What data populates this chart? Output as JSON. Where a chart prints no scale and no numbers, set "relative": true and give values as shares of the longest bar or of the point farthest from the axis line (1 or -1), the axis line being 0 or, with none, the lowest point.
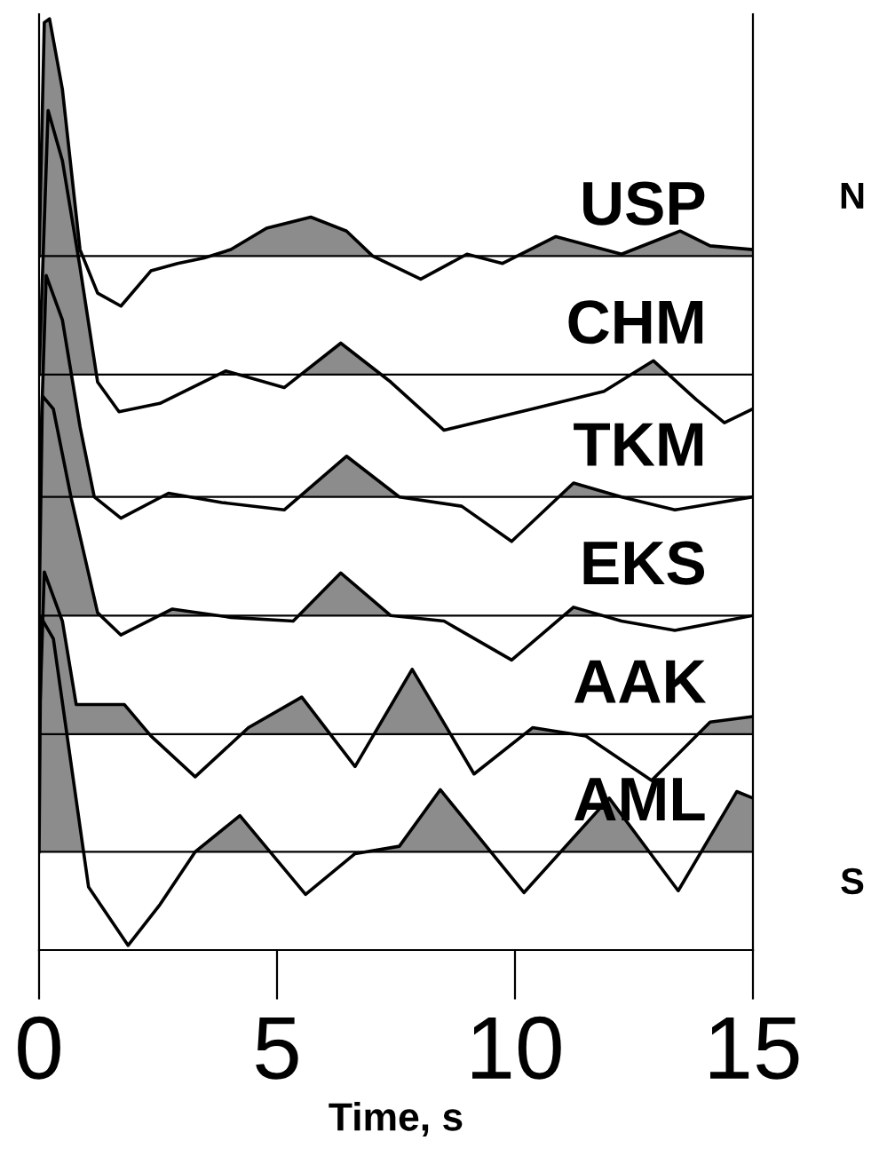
{
  "chart_data": {
    "type": "line",
    "relative": true,
    "xlabel": "Time, s",
    "xlim": [
      0,
      15
    ],
    "xticks": [
      0,
      5,
      10,
      15
    ],
    "grid": false,
    "annotations": [
      "N",
      "S"
    ],
    "ref_lines": [
      {
        "axis": "y",
        "value": 0.744
      },
      {
        "axis": "y",
        "value": 0.616
      },
      {
        "axis": "y",
        "value": 0.484
      },
      {
        "axis": "y",
        "value": 0.356
      },
      {
        "axis": "y",
        "value": 0.228
      },
      {
        "axis": "y",
        "value": 0.101
      }
    ],
    "series": [
      {
        "name": "USP",
        "color": "#000000",
        "x": [
          0,
          0.11,
          0.22,
          0.49,
          0.86,
          1.23,
          1.72,
          2.35,
          2.91,
          3.47,
          4.03,
          4.78,
          5.71,
          6.46,
          7.01,
          8.02,
          8.99,
          9.74,
          10.86,
          12.24,
          13.47,
          14.1,
          15
        ],
        "values": [
          0.744,
          0.996,
          1.0,
          0.924,
          0.751,
          0.704,
          0.69,
          0.728,
          0.736,
          0.742,
          0.751,
          0.774,
          0.786,
          0.771,
          0.744,
          0.719,
          0.746,
          0.736,
          0.765,
          0.746,
          0.771,
          0.755,
          0.751
        ]
      },
      {
        "name": "CHM",
        "color": "#000000",
        "x": [
          0,
          0.19,
          0.49,
          0.86,
          1.23,
          1.68,
          2.54,
          3.92,
          5.15,
          6.34,
          7.39,
          8.51,
          10.37,
          11.87,
          12.91,
          13.81,
          14.4,
          15
        ],
        "values": [
          0.616,
          0.901,
          0.847,
          0.732,
          0.608,
          0.576,
          0.585,
          0.62,
          0.602,
          0.65,
          0.608,
          0.556,
          0.579,
          0.598,
          0.631,
          0.589,
          0.564,
          0.579
        ]
      },
      {
        "name": "TKM",
        "color": "#000000",
        "x": [
          0,
          0.15,
          0.49,
          0.86,
          1.16,
          1.72,
          2.72,
          3.84,
          5.15,
          6.46,
          7.57,
          8.88,
          9.93,
          11.23,
          12.24,
          13.36,
          15
        ],
        "values": [
          0.484,
          0.723,
          0.675,
          0.56,
          0.484,
          0.461,
          0.488,
          0.478,
          0.47,
          0.528,
          0.484,
          0.474,
          0.436,
          0.499,
          0.484,
          0.47,
          0.484
        ]
      },
      {
        "name": "EKS",
        "color": "#000000",
        "x": [
          0,
          0.07,
          0.3,
          0.67,
          1.23,
          1.72,
          2.8,
          4.03,
          5.34,
          6.34,
          7.39,
          8.51,
          9.93,
          11.23,
          12.24,
          13.36,
          15
        ],
        "values": [
          0.356,
          0.593,
          0.579,
          0.484,
          0.359,
          0.335,
          0.363,
          0.354,
          0.35,
          0.402,
          0.356,
          0.35,
          0.308,
          0.365,
          0.35,
          0.34,
          0.356
        ]
      },
      {
        "name": "AAK",
        "color": "#000000",
        "x": [
          0,
          0.11,
          0.49,
          0.78,
          1.31,
          1.79,
          2.35,
          3.28,
          4.4,
          5.52,
          6.64,
          7.84,
          9.14,
          10.37,
          11.49,
          12.87,
          14.1,
          15
        ],
        "values": [
          0.228,
          0.403,
          0.35,
          0.26,
          0.26,
          0.26,
          0.226,
          0.182,
          0.235,
          0.268,
          0.193,
          0.298,
          0.185,
          0.235,
          0.226,
          0.178,
          0.241,
          0.247
        ]
      },
      {
        "name": "AML",
        "color": "#000000",
        "x": [
          0,
          0.04,
          0.3,
          0.67,
          1.04,
          1.87,
          2.54,
          3.28,
          4.22,
          5.6,
          6.64,
          7.57,
          8.43,
          10.19,
          11.98,
          13.43,
          14.66,
          15
        ],
        "values": [
          0.101,
          0.354,
          0.331,
          0.197,
          0.063,
          0,
          0.044,
          0.101,
          0.14,
          0.055,
          0.099,
          0.107,
          0.168,
          0.057,
          0.159,
          0.059,
          0.166,
          0.159
        ]
      }
    ]
  }
}
